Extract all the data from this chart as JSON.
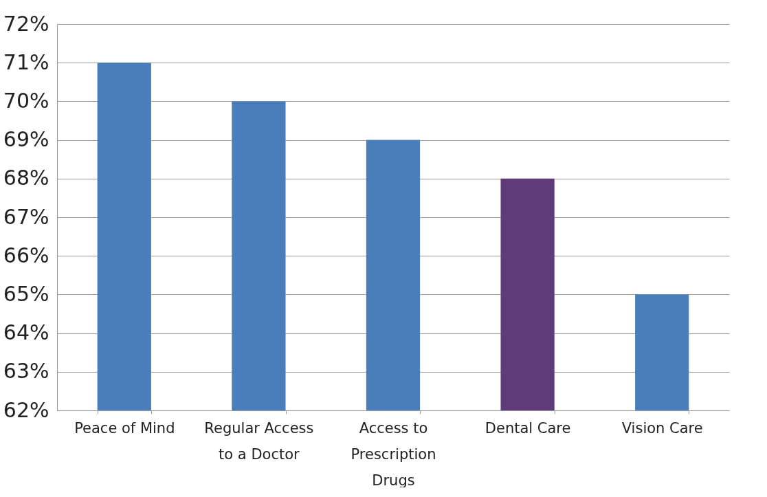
{
  "chart_data": {
    "type": "bar",
    "categories": [
      "Peace of Mind",
      "Regular Access to a Doctor",
      "Access to Prescription Drugs",
      "Dental Care",
      "Vision Care"
    ],
    "values": [
      71,
      70,
      69,
      68,
      65
    ],
    "colors": [
      "#4a7ebb",
      "#4a7ebb",
      "#4a7ebb",
      "#5f3b7a",
      "#4a7ebb"
    ],
    "ylim": [
      62,
      72
    ],
    "yticks": [
      {
        "value": 62,
        "label": "62%"
      },
      {
        "value": 63,
        "label": "63%"
      },
      {
        "value": 64,
        "label": "64%"
      },
      {
        "value": 65,
        "label": "65%"
      },
      {
        "value": 66,
        "label": "66%"
      },
      {
        "value": 67,
        "label": "67%"
      },
      {
        "value": 68,
        "label": "68%"
      },
      {
        "value": 69,
        "label": "69%"
      },
      {
        "value": 70,
        "label": "70%"
      },
      {
        "value": 71,
        "label": "71%"
      },
      {
        "value": 72,
        "label": "72%"
      }
    ],
    "grid": "y"
  }
}
